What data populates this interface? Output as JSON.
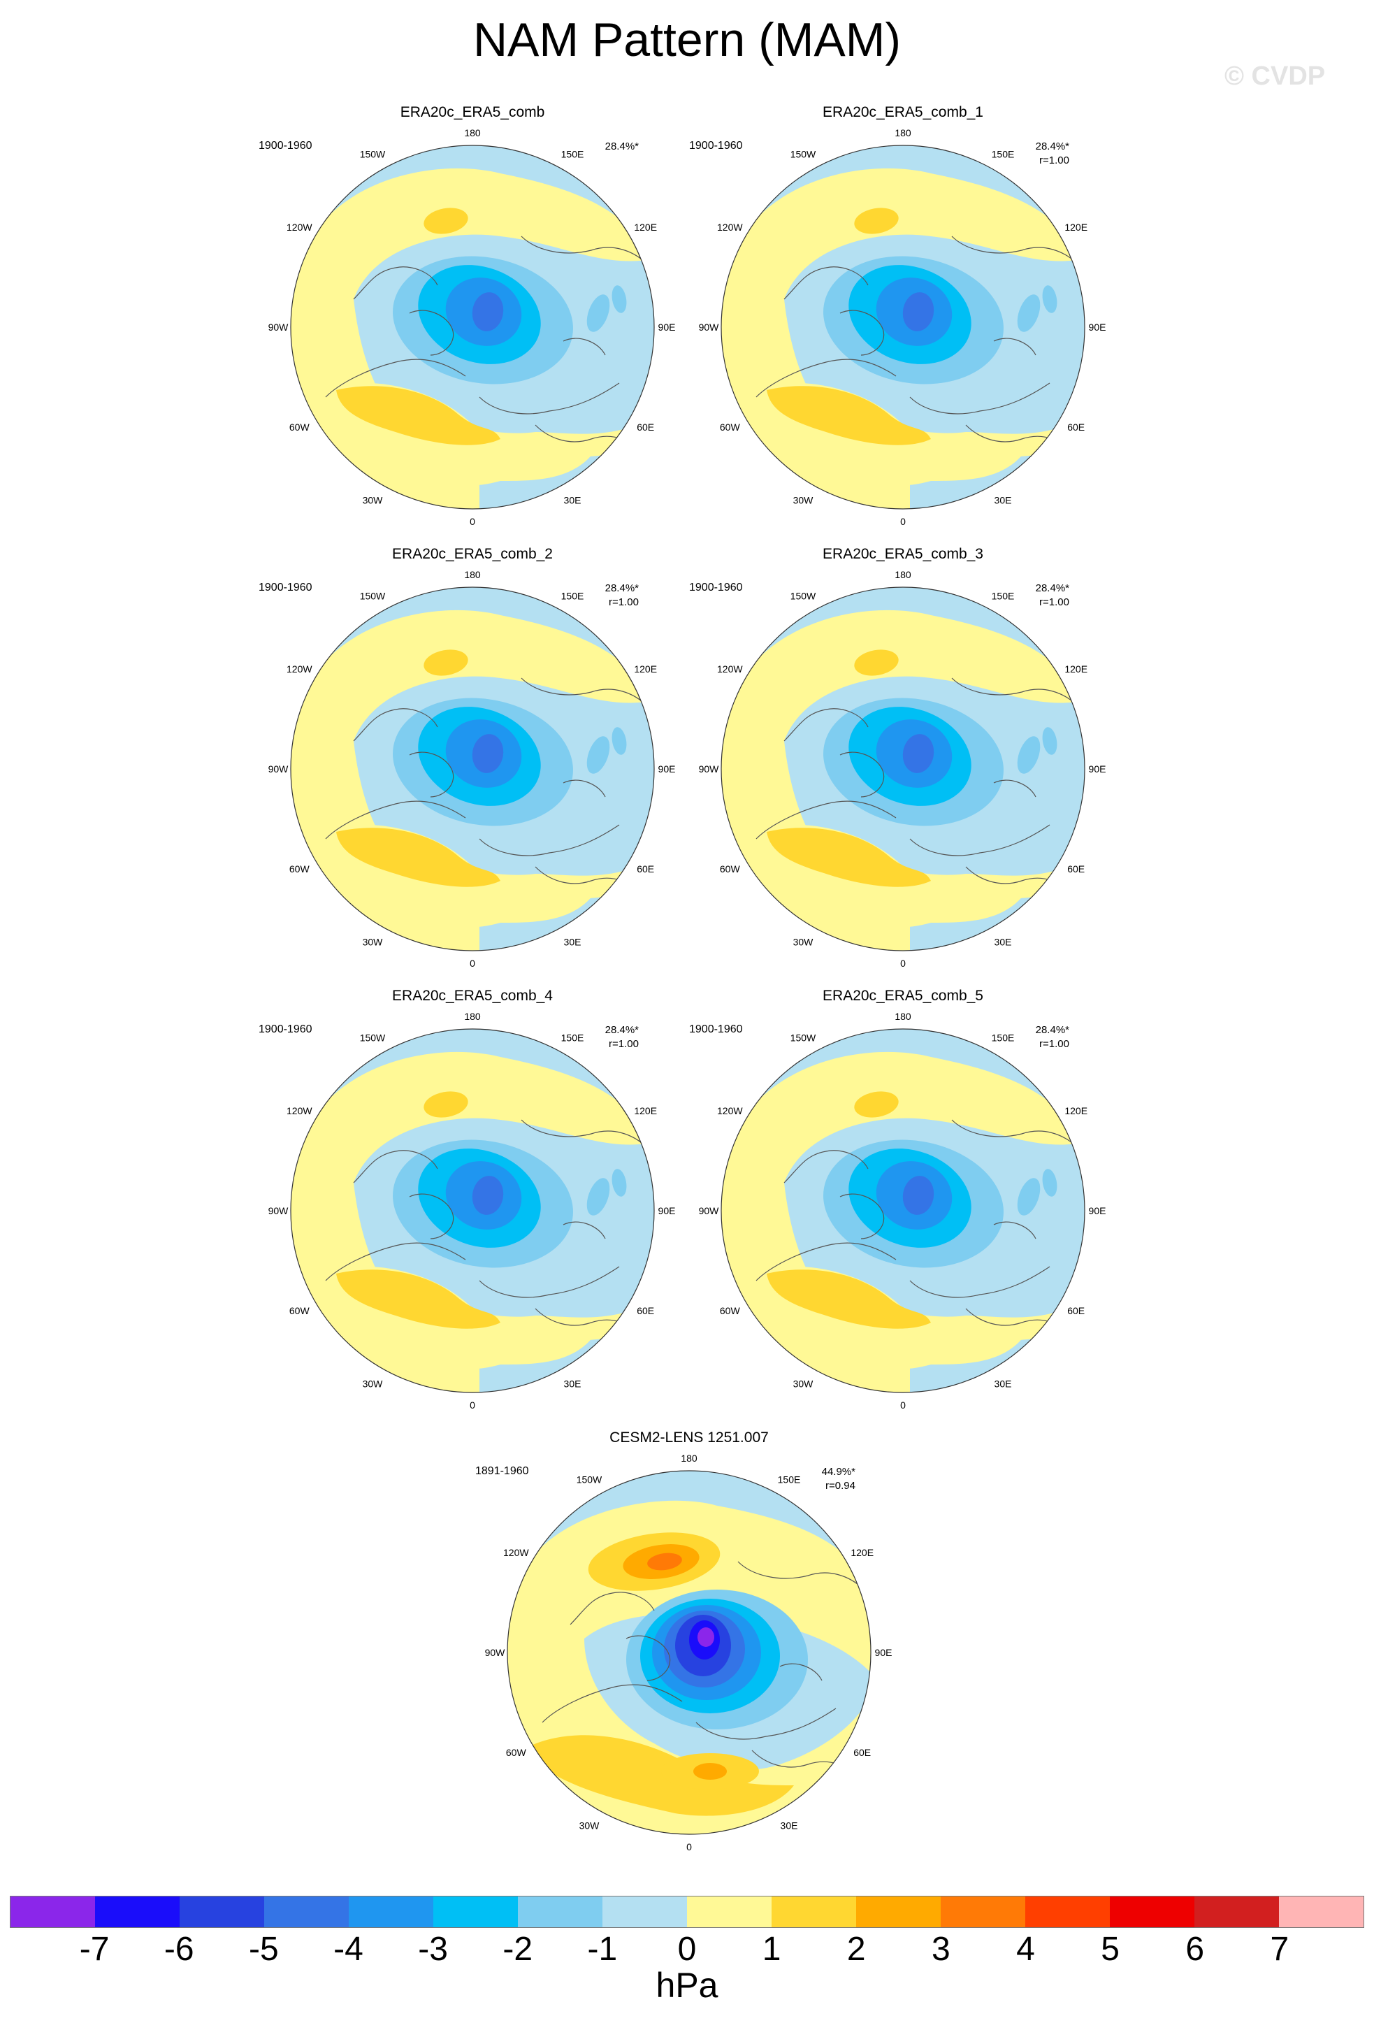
{
  "figure": {
    "title": "NAM Pattern (MAM)",
    "watermark": "© CVDP",
    "units": "hPa"
  },
  "longitude_labels": [
    "180",
    "150E",
    "120E",
    "90E",
    "60E",
    "30E",
    "0",
    "30W",
    "60W",
    "90W",
    "120W",
    "150W"
  ],
  "panels": [
    {
      "title": "ERA20c_ERA5_comb",
      "period": "1900-1960",
      "variance": "28.4%*",
      "correlation": "",
      "style": "obs"
    },
    {
      "title": "ERA20c_ERA5_comb_1",
      "period": "1900-1960",
      "variance": "28.4%*",
      "correlation": "r=1.00",
      "style": "obs"
    },
    {
      "title": "ERA20c_ERA5_comb_2",
      "period": "1900-1960",
      "variance": "28.4%*",
      "correlation": "r=1.00",
      "style": "obs"
    },
    {
      "title": "ERA20c_ERA5_comb_3",
      "period": "1900-1960",
      "variance": "28.4%*",
      "correlation": "r=1.00",
      "style": "obs"
    },
    {
      "title": "ERA20c_ERA5_comb_4",
      "period": "1900-1960",
      "variance": "28.4%*",
      "correlation": "r=1.00",
      "style": "obs"
    },
    {
      "title": "ERA20c_ERA5_comb_5",
      "period": "1900-1960",
      "variance": "28.4%*",
      "correlation": "r=1.00",
      "style": "obs"
    },
    {
      "title": "CESM2-LENS 1251.007",
      "period": "1891-1960",
      "variance": "44.9%*",
      "correlation": "r=0.94",
      "style": "model"
    }
  ],
  "colorbar": {
    "labels": [
      "-7",
      "-6",
      "-5",
      "-4",
      "-3",
      "-2",
      "-1",
      "0",
      "1",
      "2",
      "3",
      "4",
      "5",
      "6",
      "7"
    ],
    "colors": [
      "#8b26ea",
      "#1a0dfa",
      "#2742e0",
      "#3474e6",
      "#1f96f0",
      "#00bff5",
      "#7fcdf0",
      "#b4e0f2",
      "#fff996",
      "#ffd731",
      "#ffaa00",
      "#ff7a06",
      "#ff3f00",
      "#ee0000",
      "#d21f1f",
      "#ffb5b5"
    ]
  }
}
